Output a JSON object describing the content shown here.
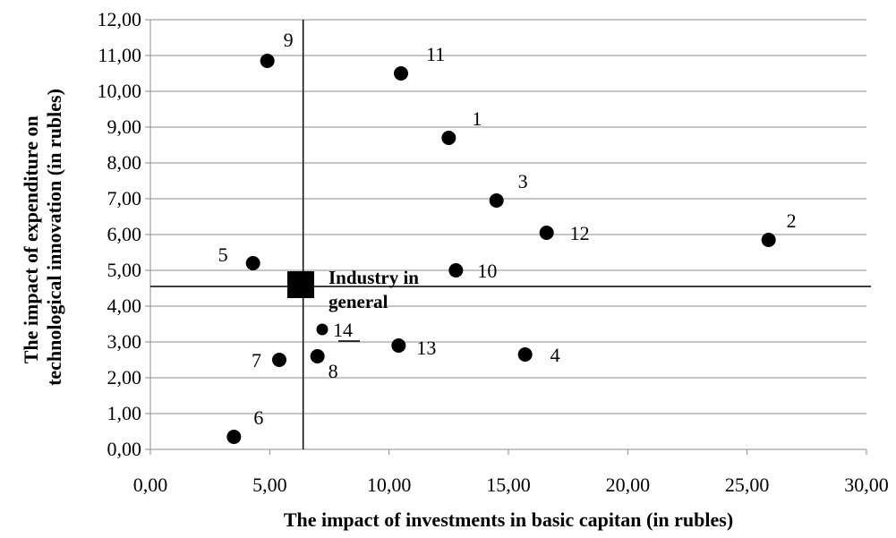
{
  "chart_data": {
    "type": "scatter",
    "xlabel": "The impact of investments in basic capitan (in rubles)",
    "ylabel_lines": [
      "The impact of expenditure on",
      "technological innovation (in rubles)"
    ],
    "xlim": [
      0,
      30
    ],
    "ylim": [
      0,
      12
    ],
    "x_ticks": [
      0,
      5,
      10,
      15,
      20,
      25,
      30
    ],
    "x_tick_labels": [
      "0,00",
      "5,00",
      "10,00",
      "15,00",
      "20,00",
      "25,00",
      "30,00"
    ],
    "y_ticks": [
      0,
      1,
      2,
      3,
      4,
      5,
      6,
      7,
      8,
      9,
      10,
      11,
      12
    ],
    "y_tick_labels": [
      "0,00",
      "1,00",
      "2,00",
      "3,00",
      "4,00",
      "5,00",
      "6,00",
      "7,00",
      "8,00",
      "9,00",
      "10,00",
      "11,00",
      "12,00"
    ],
    "grid": "horizontal",
    "points": [
      {
        "label": "1",
        "x": 12.5,
        "y": 8.7
      },
      {
        "label": "2",
        "x": 25.9,
        "y": 5.85
      },
      {
        "label": "3",
        "x": 14.5,
        "y": 6.95
      },
      {
        "label": "4",
        "x": 15.7,
        "y": 2.65
      },
      {
        "label": "5",
        "x": 4.3,
        "y": 5.2
      },
      {
        "label": "6",
        "x": 3.5,
        "y": 0.35
      },
      {
        "label": "7",
        "x": 5.4,
        "y": 2.5
      },
      {
        "label": "8",
        "x": 7.0,
        "y": 2.6
      },
      {
        "label": "9",
        "x": 4.9,
        "y": 10.85
      },
      {
        "label": "10",
        "x": 12.8,
        "y": 5.0
      },
      {
        "label": "11",
        "x": 10.5,
        "y": 10.5
      },
      {
        "label": "12",
        "x": 16.6,
        "y": 6.05
      },
      {
        "label": "13",
        "x": 10.4,
        "y": 2.9
      },
      {
        "label": "14",
        "x": 7.2,
        "y": 3.35
      }
    ],
    "industry_point": {
      "x": 6.3,
      "y": 4.6
    },
    "industry_label_lines": [
      "Industry in",
      "general"
    ],
    "reference_lines": {
      "vertical_x": 6.4,
      "horizontal_y": 4.55
    }
  }
}
